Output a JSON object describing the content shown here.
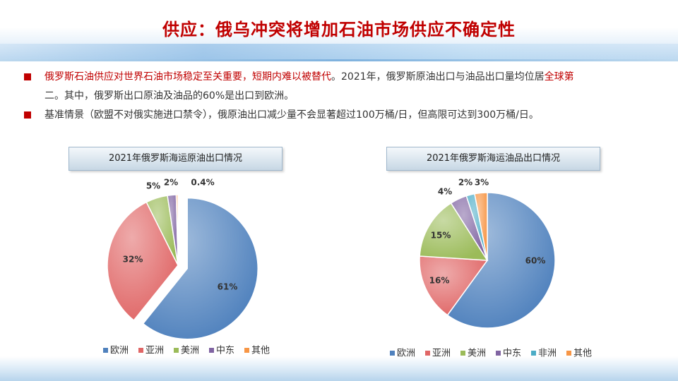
{
  "title": "供应：俄乌冲突将增加石油市场供应不确定性",
  "bullets": [
    {
      "red_text": "俄罗斯石油供应对世界石油市场稳定至关重要，短期内难以被替代",
      "text_1": "。2021年，俄罗斯原油出口与油品出口量均位居",
      "red_text_2": "全球第",
      "text_2": "二。其中，俄罗斯出口原油及油品的60%是出口到欧洲。"
    },
    {
      "text": "基准情景（欧盟不对俄实施进口禁令），俄原油出口减少量不会显著超过100万桶/日，但高限可达到300万桶/日。"
    }
  ],
  "colors": {
    "欧洲": "#4f81bd",
    "亚洲": "#e06666",
    "美洲": "#9bbb59",
    "中东": "#8064a2",
    "非洲": "#4bacc6",
    "其他": "#f79646",
    "title_red": "#c00000"
  },
  "chart_data": [
    {
      "type": "pie",
      "title": "2021年俄罗斯海运原油出口情况",
      "categories": [
        "欧洲",
        "亚洲",
        "美洲",
        "中东",
        "其他"
      ],
      "values": [
        61,
        32,
        5,
        2,
        0.4
      ],
      "labels": [
        "61%",
        "32%",
        "5%",
        "2%",
        "0.4%"
      ],
      "exploded": true,
      "legend_position": "bottom"
    },
    {
      "type": "pie",
      "title": "2021年俄罗斯海运油品出口情况",
      "categories": [
        "欧洲",
        "亚洲",
        "美洲",
        "中东",
        "非洲",
        "其他"
      ],
      "values": [
        60,
        16,
        15,
        4,
        2,
        3
      ],
      "labels": [
        "60%",
        "16%",
        "15%",
        "4%",
        "2%",
        "3%"
      ],
      "exploded": false,
      "legend_position": "bottom"
    }
  ]
}
